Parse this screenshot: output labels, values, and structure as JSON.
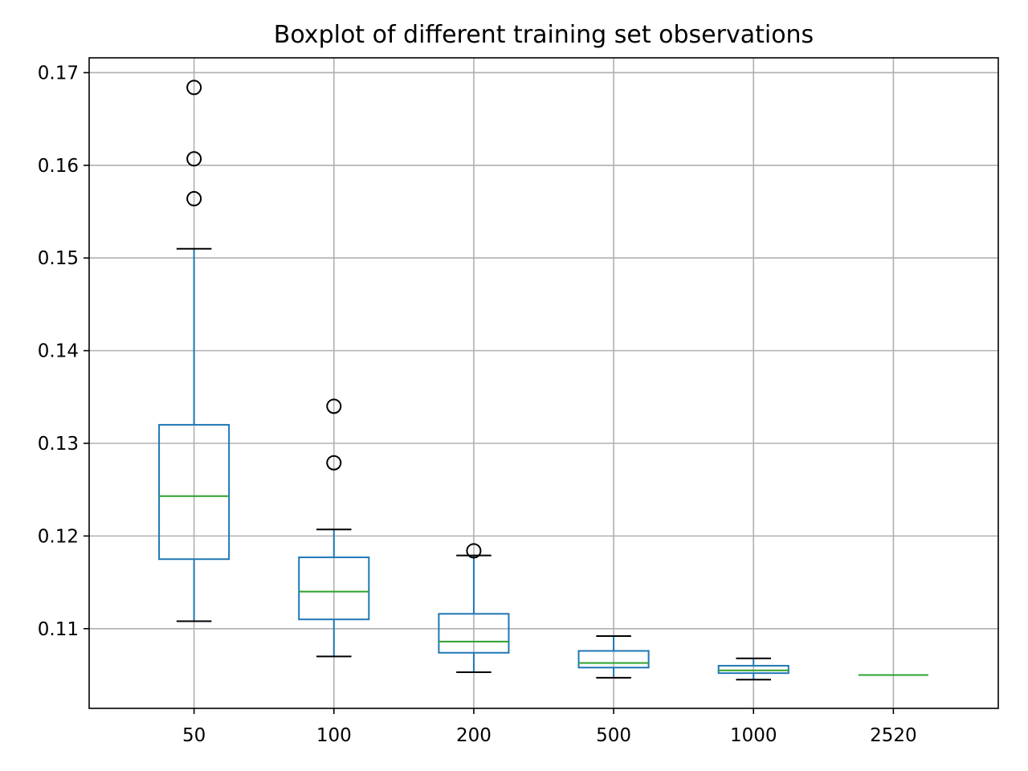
{
  "chart_data": {
    "type": "boxplot",
    "title": "Boxplot of different training set observations",
    "xlabel": "",
    "ylabel": "",
    "categories": [
      "50",
      "100",
      "200",
      "500",
      "1000",
      "2520"
    ],
    "ylim": [
      0.1014,
      0.1716
    ],
    "yticks": [
      0.11,
      0.12,
      0.13,
      0.14,
      0.15,
      0.16,
      0.17
    ],
    "ytick_labels": [
      "0.11",
      "0.12",
      "0.13",
      "0.14",
      "0.15",
      "0.16",
      "0.17"
    ],
    "grid": true,
    "boxes": [
      {
        "category": "50",
        "whisker_low": 0.1108,
        "q1": 0.1175,
        "median": 0.1243,
        "q3": 0.132,
        "whisker_high": 0.151,
        "fliers": [
          0.1564,
          0.1607,
          0.1684
        ]
      },
      {
        "category": "100",
        "whisker_low": 0.107,
        "q1": 0.111,
        "median": 0.114,
        "q3": 0.1177,
        "whisker_high": 0.1207,
        "fliers": [
          0.1279,
          0.134
        ]
      },
      {
        "category": "200",
        "whisker_low": 0.1053,
        "q1": 0.1074,
        "median": 0.1086,
        "q3": 0.1116,
        "whisker_high": 0.1179,
        "fliers": [
          0.1184
        ]
      },
      {
        "category": "500",
        "whisker_low": 0.1047,
        "q1": 0.1058,
        "median": 0.1063,
        "q3": 0.1076,
        "whisker_high": 0.1092,
        "fliers": []
      },
      {
        "category": "1000",
        "whisker_low": 0.1045,
        "q1": 0.1052,
        "median": 0.1055,
        "q3": 0.106,
        "whisker_high": 0.1068,
        "fliers": []
      },
      {
        "category": "2520",
        "whisker_low": 0.105,
        "q1": 0.105,
        "median": 0.105,
        "q3": 0.105,
        "whisker_high": 0.105,
        "fliers": []
      }
    ],
    "colors": {
      "box": "#1f77b4",
      "median": "#2ca02c",
      "cap": "#000000",
      "flier": "#000000",
      "grid": "#b0b0b0"
    }
  }
}
